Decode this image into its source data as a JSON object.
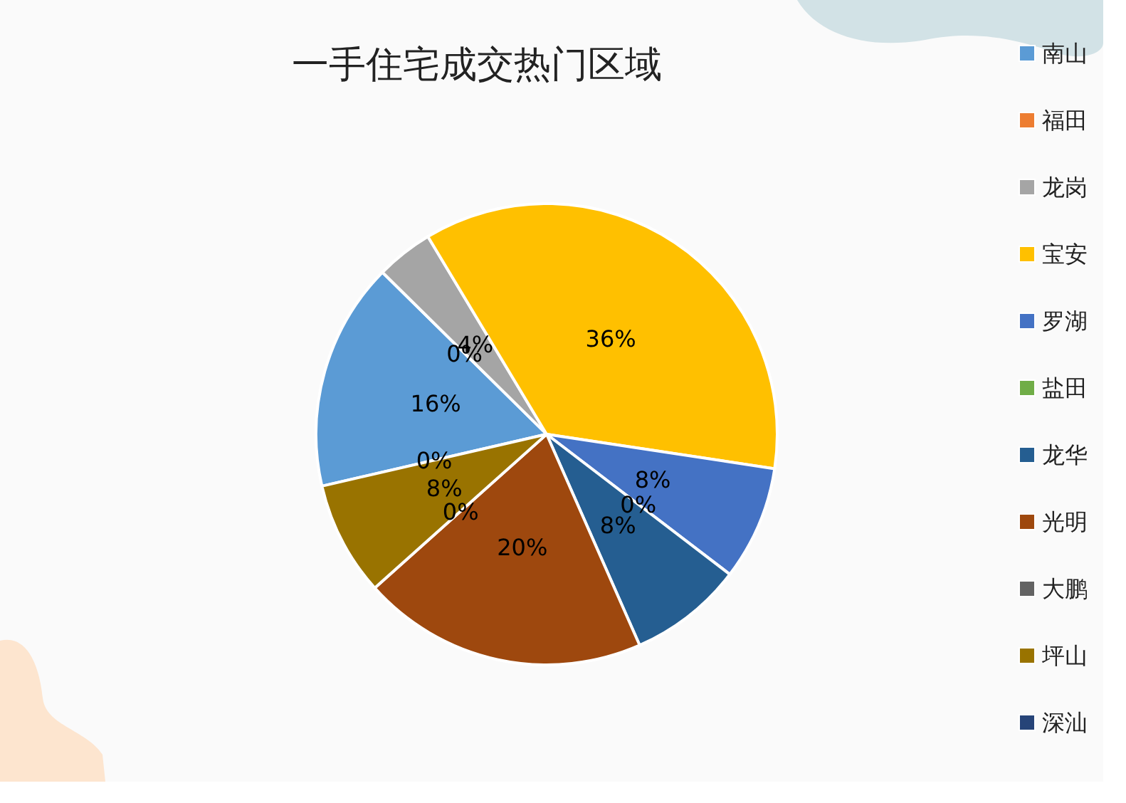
{
  "chart_data": {
    "type": "pie",
    "title": "一手住宅成交热门区域",
    "categories": [
      "南山",
      "福田",
      "龙岗",
      "宝安",
      "罗湖",
      "盐田",
      "龙华",
      "光明",
      "大鹏",
      "坪山",
      "深汕"
    ],
    "values": [
      16,
      0,
      4,
      36,
      8,
      0,
      8,
      20,
      0,
      8,
      0
    ],
    "value_labels": [
      "16%",
      "0%",
      "4%",
      "36%",
      "8%",
      "0%",
      "8%",
      "20%",
      "0%",
      "8%",
      "0%"
    ],
    "colors": [
      "#5b9bd5",
      "#ed7d31",
      "#a5a5a5",
      "#ffc000",
      "#4472c4",
      "#70ad47",
      "#255e91",
      "#9e480e",
      "#636363",
      "#997300",
      "#264478"
    ],
    "legend": "right"
  }
}
